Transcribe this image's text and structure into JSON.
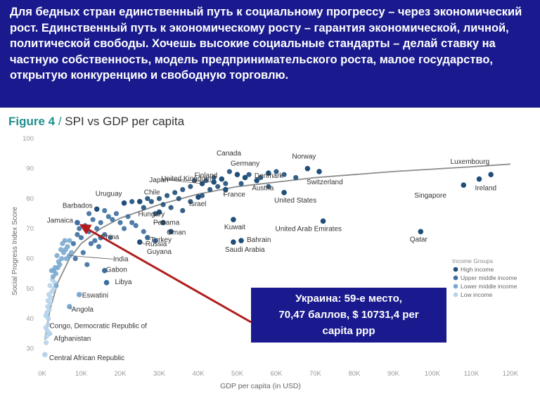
{
  "banner": {
    "text": "Для бедных стран единственный путь к социальному прогрессу – через экономический рост. Единственный путь к экономическому росту – гарантия экономической, личной, политической свободы. Хочешь высокие социальные стандарты – делай ставку на частную собственность, модель предпринимательского роста, малое государство, открытую конкуренцию и свободную торговлю."
  },
  "figure": {
    "number": "Figure 4",
    "separator": " / ",
    "title": "SPI vs GDP per capita"
  },
  "colors": {
    "banner_bg": "#1a1a8e",
    "high": "#1f4e79",
    "upper_middle": "#3d6f9e",
    "lower_middle": "#7aaad2",
    "low": "#b7d3ea",
    "trend": "#8c8c8c",
    "arrow": "#b01c1c",
    "callout_bg": "#1a1a8e"
  },
  "callout": {
    "lines": [
      "Украина: 59-е место,",
      "70,47 баллов, $ 10731,4 per",
      "capita ppp"
    ]
  },
  "chart_data": {
    "type": "scatter",
    "xlabel": "GDP per capita (in USD)",
    "ylabel": "Social Progress Index Score",
    "xlim": [
      0,
      122000
    ],
    "ylim": [
      25,
      100
    ],
    "xticks": [
      0,
      10000,
      20000,
      30000,
      40000,
      50000,
      60000,
      70000,
      80000,
      90000,
      100000,
      110000,
      120000
    ],
    "xtick_labels": [
      "0K",
      "10K",
      "20K",
      "30K",
      "40K",
      "50K",
      "60K",
      "70K",
      "80K",
      "90K",
      "100K",
      "110K",
      "120K"
    ],
    "yticks": [
      30,
      40,
      50,
      60,
      70,
      80,
      90,
      100
    ],
    "grid": false,
    "legend": {
      "title": "Income Groups",
      "placement": "right",
      "entries": [
        {
          "name": "High income",
          "group": "high"
        },
        {
          "name": "Upper middle income",
          "group": "upper_middle"
        },
        {
          "name": "Lower middle income",
          "group": "lower_middle"
        },
        {
          "name": "Low income",
          "group": "low"
        }
      ]
    },
    "trend": [
      [
        700,
        33
      ],
      [
        2000,
        43
      ],
      [
        4000,
        52
      ],
      [
        7000,
        60
      ],
      [
        10000,
        65
      ],
      [
        15000,
        70
      ],
      [
        20000,
        73.5
      ],
      [
        30000,
        78
      ],
      [
        40000,
        81.5
      ],
      [
        50000,
        84
      ],
      [
        60000,
        85.5
      ],
      [
        70000,
        87
      ],
      [
        80000,
        88
      ],
      [
        90000,
        89
      ],
      [
        100000,
        89.8
      ],
      [
        110000,
        90.6
      ],
      [
        120000,
        91.5
      ]
    ],
    "labeled_points": [
      {
        "name": "Luxembourg",
        "x": 115000,
        "y": 88,
        "g": "high"
      },
      {
        "name": "Ireland",
        "x": 112000,
        "y": 86.5,
        "g": "high"
      },
      {
        "name": "Singapore",
        "x": 108000,
        "y": 84.5,
        "g": "high"
      },
      {
        "name": "Norway",
        "x": 68000,
        "y": 90,
        "g": "high"
      },
      {
        "name": "Switzerland",
        "x": 71000,
        "y": 89,
        "g": "high"
      },
      {
        "name": "Denmark",
        "x": 58000,
        "y": 88.5,
        "g": "high"
      },
      {
        "name": "Canada",
        "x": 50000,
        "y": 88,
        "g": "high"
      },
      {
        "name": "Germany",
        "x": 52000,
        "y": 87,
        "g": "high"
      },
      {
        "name": "Finland",
        "x": 46000,
        "y": 86.5,
        "g": "high"
      },
      {
        "name": "Austria",
        "x": 55000,
        "y": 86,
        "g": "high"
      },
      {
        "name": "United Kingdom",
        "x": 44000,
        "y": 85.5,
        "g": "high"
      },
      {
        "name": "Japan",
        "x": 41000,
        "y": 85,
        "g": "high"
      },
      {
        "name": "France",
        "x": 47000,
        "y": 83,
        "g": "high"
      },
      {
        "name": "United States",
        "x": 62000,
        "y": 82,
        "g": "high"
      },
      {
        "name": "Israel",
        "x": 40000,
        "y": 80.5,
        "g": "high"
      },
      {
        "name": "Uruguay",
        "x": 21000,
        "y": 78.5,
        "g": "high"
      },
      {
        "name": "Chile",
        "x": 25000,
        "y": 79,
        "g": "high"
      },
      {
        "name": "Barbados",
        "x": 14000,
        "y": 76.5,
        "g": "high"
      },
      {
        "name": "Hungary",
        "x": 30000,
        "y": 75.5,
        "g": "high"
      },
      {
        "name": "Panama",
        "x": 31000,
        "y": 72,
        "g": "high"
      },
      {
        "name": "Jamaica",
        "x": 9000,
        "y": 72,
        "g": "upper_middle"
      },
      {
        "name": "Kuwait",
        "x": 49000,
        "y": 73,
        "g": "high"
      },
      {
        "name": "United Arab Emirates",
        "x": 72000,
        "y": 72.5,
        "g": "high"
      },
      {
        "name": "Qatar",
        "x": 97000,
        "y": 69,
        "g": "high"
      },
      {
        "name": "Oman",
        "x": 33000,
        "y": 69,
        "g": "high"
      },
      {
        "name": "Turkey",
        "x": 27000,
        "y": 67,
        "g": "upper_middle"
      },
      {
        "name": "Bahrain",
        "x": 51000,
        "y": 66,
        "g": "high"
      },
      {
        "name": "Saudi Arabia",
        "x": 49000,
        "y": 65.5,
        "g": "high"
      },
      {
        "name": "China",
        "x": 15000,
        "y": 67,
        "g": "upper_middle"
      },
      {
        "name": "Russia",
        "x": 25000,
        "y": 65.5,
        "g": "high"
      },
      {
        "name": "Guyana",
        "x": 29000,
        "y": 66,
        "g": "upper_middle"
      },
      {
        "name": "India",
        "x": 7000,
        "y": 61,
        "g": "lower_middle"
      },
      {
        "name": "Gabon",
        "x": 16000,
        "y": 56,
        "g": "upper_middle"
      },
      {
        "name": "Libya",
        "x": 16500,
        "y": 52,
        "g": "upper_middle"
      },
      {
        "name": "Eswatini",
        "x": 9500,
        "y": 48,
        "g": "lower_middle"
      },
      {
        "name": "Angola",
        "x": 7000,
        "y": 44,
        "g": "lower_middle"
      },
      {
        "name": "Congo, Democratic Republic of",
        "x": 1000,
        "y": 41,
        "g": "low"
      },
      {
        "name": "Afghanistan",
        "x": 1900,
        "y": 35,
        "g": "low"
      },
      {
        "name": "Central African Republic",
        "x": 700,
        "y": 28,
        "g": "low"
      }
    ],
    "points": [
      [
        1000,
        32,
        "low"
      ],
      [
        1100,
        34,
        "low"
      ],
      [
        1300,
        36,
        "low"
      ],
      [
        1500,
        38,
        "low"
      ],
      [
        1600,
        40,
        "low"
      ],
      [
        1200,
        42,
        "low"
      ],
      [
        1800,
        43,
        "low"
      ],
      [
        2000,
        45,
        "low"
      ],
      [
        1400,
        44,
        "low"
      ],
      [
        2200,
        47,
        "low"
      ],
      [
        2500,
        49,
        "low"
      ],
      [
        1700,
        48,
        "low"
      ],
      [
        3000,
        50,
        "low"
      ],
      [
        2000,
        51,
        "low"
      ],
      [
        2600,
        53,
        "low"
      ],
      [
        3200,
        52,
        "low"
      ],
      [
        1500,
        46,
        "low"
      ],
      [
        900,
        37,
        "low"
      ],
      [
        3500,
        55,
        "lower_middle"
      ],
      [
        4000,
        57,
        "lower_middle"
      ],
      [
        3000,
        56,
        "lower_middle"
      ],
      [
        4500,
        58,
        "lower_middle"
      ],
      [
        5000,
        60,
        "lower_middle"
      ],
      [
        3800,
        61,
        "lower_middle"
      ],
      [
        5500,
        62,
        "lower_middle"
      ],
      [
        6000,
        63,
        "lower_middle"
      ],
      [
        4200,
        59,
        "lower_middle"
      ],
      [
        6500,
        64,
        "lower_middle"
      ],
      [
        2800,
        54,
        "lower_middle"
      ],
      [
        5200,
        65,
        "lower_middle"
      ],
      [
        7000,
        66,
        "lower_middle"
      ],
      [
        3300,
        57,
        "lower_middle"
      ],
      [
        6200,
        60,
        "lower_middle"
      ],
      [
        4800,
        63,
        "lower_middle"
      ],
      [
        7500,
        62,
        "lower_middle"
      ],
      [
        5800,
        66,
        "lower_middle"
      ],
      [
        3600,
        51,
        "lower_middle"
      ],
      [
        2400,
        56,
        "lower_middle"
      ],
      [
        8000,
        65,
        "upper_middle"
      ],
      [
        10000,
        67,
        "upper_middle"
      ],
      [
        12000,
        69,
        "upper_middle"
      ],
      [
        14000,
        70,
        "upper_middle"
      ],
      [
        11000,
        71,
        "upper_middle"
      ],
      [
        13000,
        73,
        "upper_middle"
      ],
      [
        9000,
        68,
        "upper_middle"
      ],
      [
        15000,
        72,
        "upper_middle"
      ],
      [
        17000,
        74,
        "upper_middle"
      ],
      [
        12500,
        65,
        "upper_middle"
      ],
      [
        16000,
        68,
        "upper_middle"
      ],
      [
        18000,
        73,
        "upper_middle"
      ],
      [
        19000,
        75,
        "upper_middle"
      ],
      [
        20000,
        72,
        "upper_middle"
      ],
      [
        22000,
        74,
        "upper_middle"
      ],
      [
        10500,
        62,
        "upper_middle"
      ],
      [
        8500,
        60,
        "upper_middle"
      ],
      [
        11500,
        58,
        "upper_middle"
      ],
      [
        14500,
        64,
        "upper_middle"
      ],
      [
        9500,
        70,
        "upper_middle"
      ],
      [
        13500,
        66,
        "upper_middle"
      ],
      [
        21000,
        70,
        "upper_middle"
      ],
      [
        23000,
        72,
        "upper_middle"
      ],
      [
        17500,
        67,
        "upper_middle"
      ],
      [
        12000,
        75,
        "upper_middle"
      ],
      [
        16000,
        76,
        "upper_middle"
      ],
      [
        24000,
        71,
        "upper_middle"
      ],
      [
        26000,
        69,
        "upper_middle"
      ],
      [
        26000,
        77,
        "high"
      ],
      [
        28000,
        79,
        "high"
      ],
      [
        30000,
        80,
        "high"
      ],
      [
        32000,
        81,
        "high"
      ],
      [
        34000,
        82,
        "high"
      ],
      [
        36000,
        83,
        "high"
      ],
      [
        38000,
        84,
        "high"
      ],
      [
        42000,
        86,
        "high"
      ],
      [
        44000,
        87,
        "high"
      ],
      [
        48000,
        89,
        "high"
      ],
      [
        53000,
        88,
        "high"
      ],
      [
        56000,
        87,
        "high"
      ],
      [
        60000,
        89,
        "high"
      ],
      [
        62000,
        88,
        "high"
      ],
      [
        38000,
        79,
        "high"
      ],
      [
        33000,
        77,
        "high"
      ],
      [
        29000,
        75,
        "high"
      ],
      [
        35000,
        80,
        "high"
      ],
      [
        31000,
        78,
        "high"
      ],
      [
        45000,
        84,
        "high"
      ],
      [
        39000,
        86,
        "high"
      ],
      [
        27000,
        80,
        "high"
      ],
      [
        23000,
        79,
        "high"
      ],
      [
        41000,
        81,
        "high"
      ],
      [
        36000,
        76,
        "high"
      ],
      [
        47000,
        85,
        "high"
      ],
      [
        51000,
        85,
        "high"
      ],
      [
        58000,
        84,
        "high"
      ],
      [
        65000,
        87,
        "high"
      ],
      [
        43000,
        83,
        "high"
      ]
    ]
  }
}
